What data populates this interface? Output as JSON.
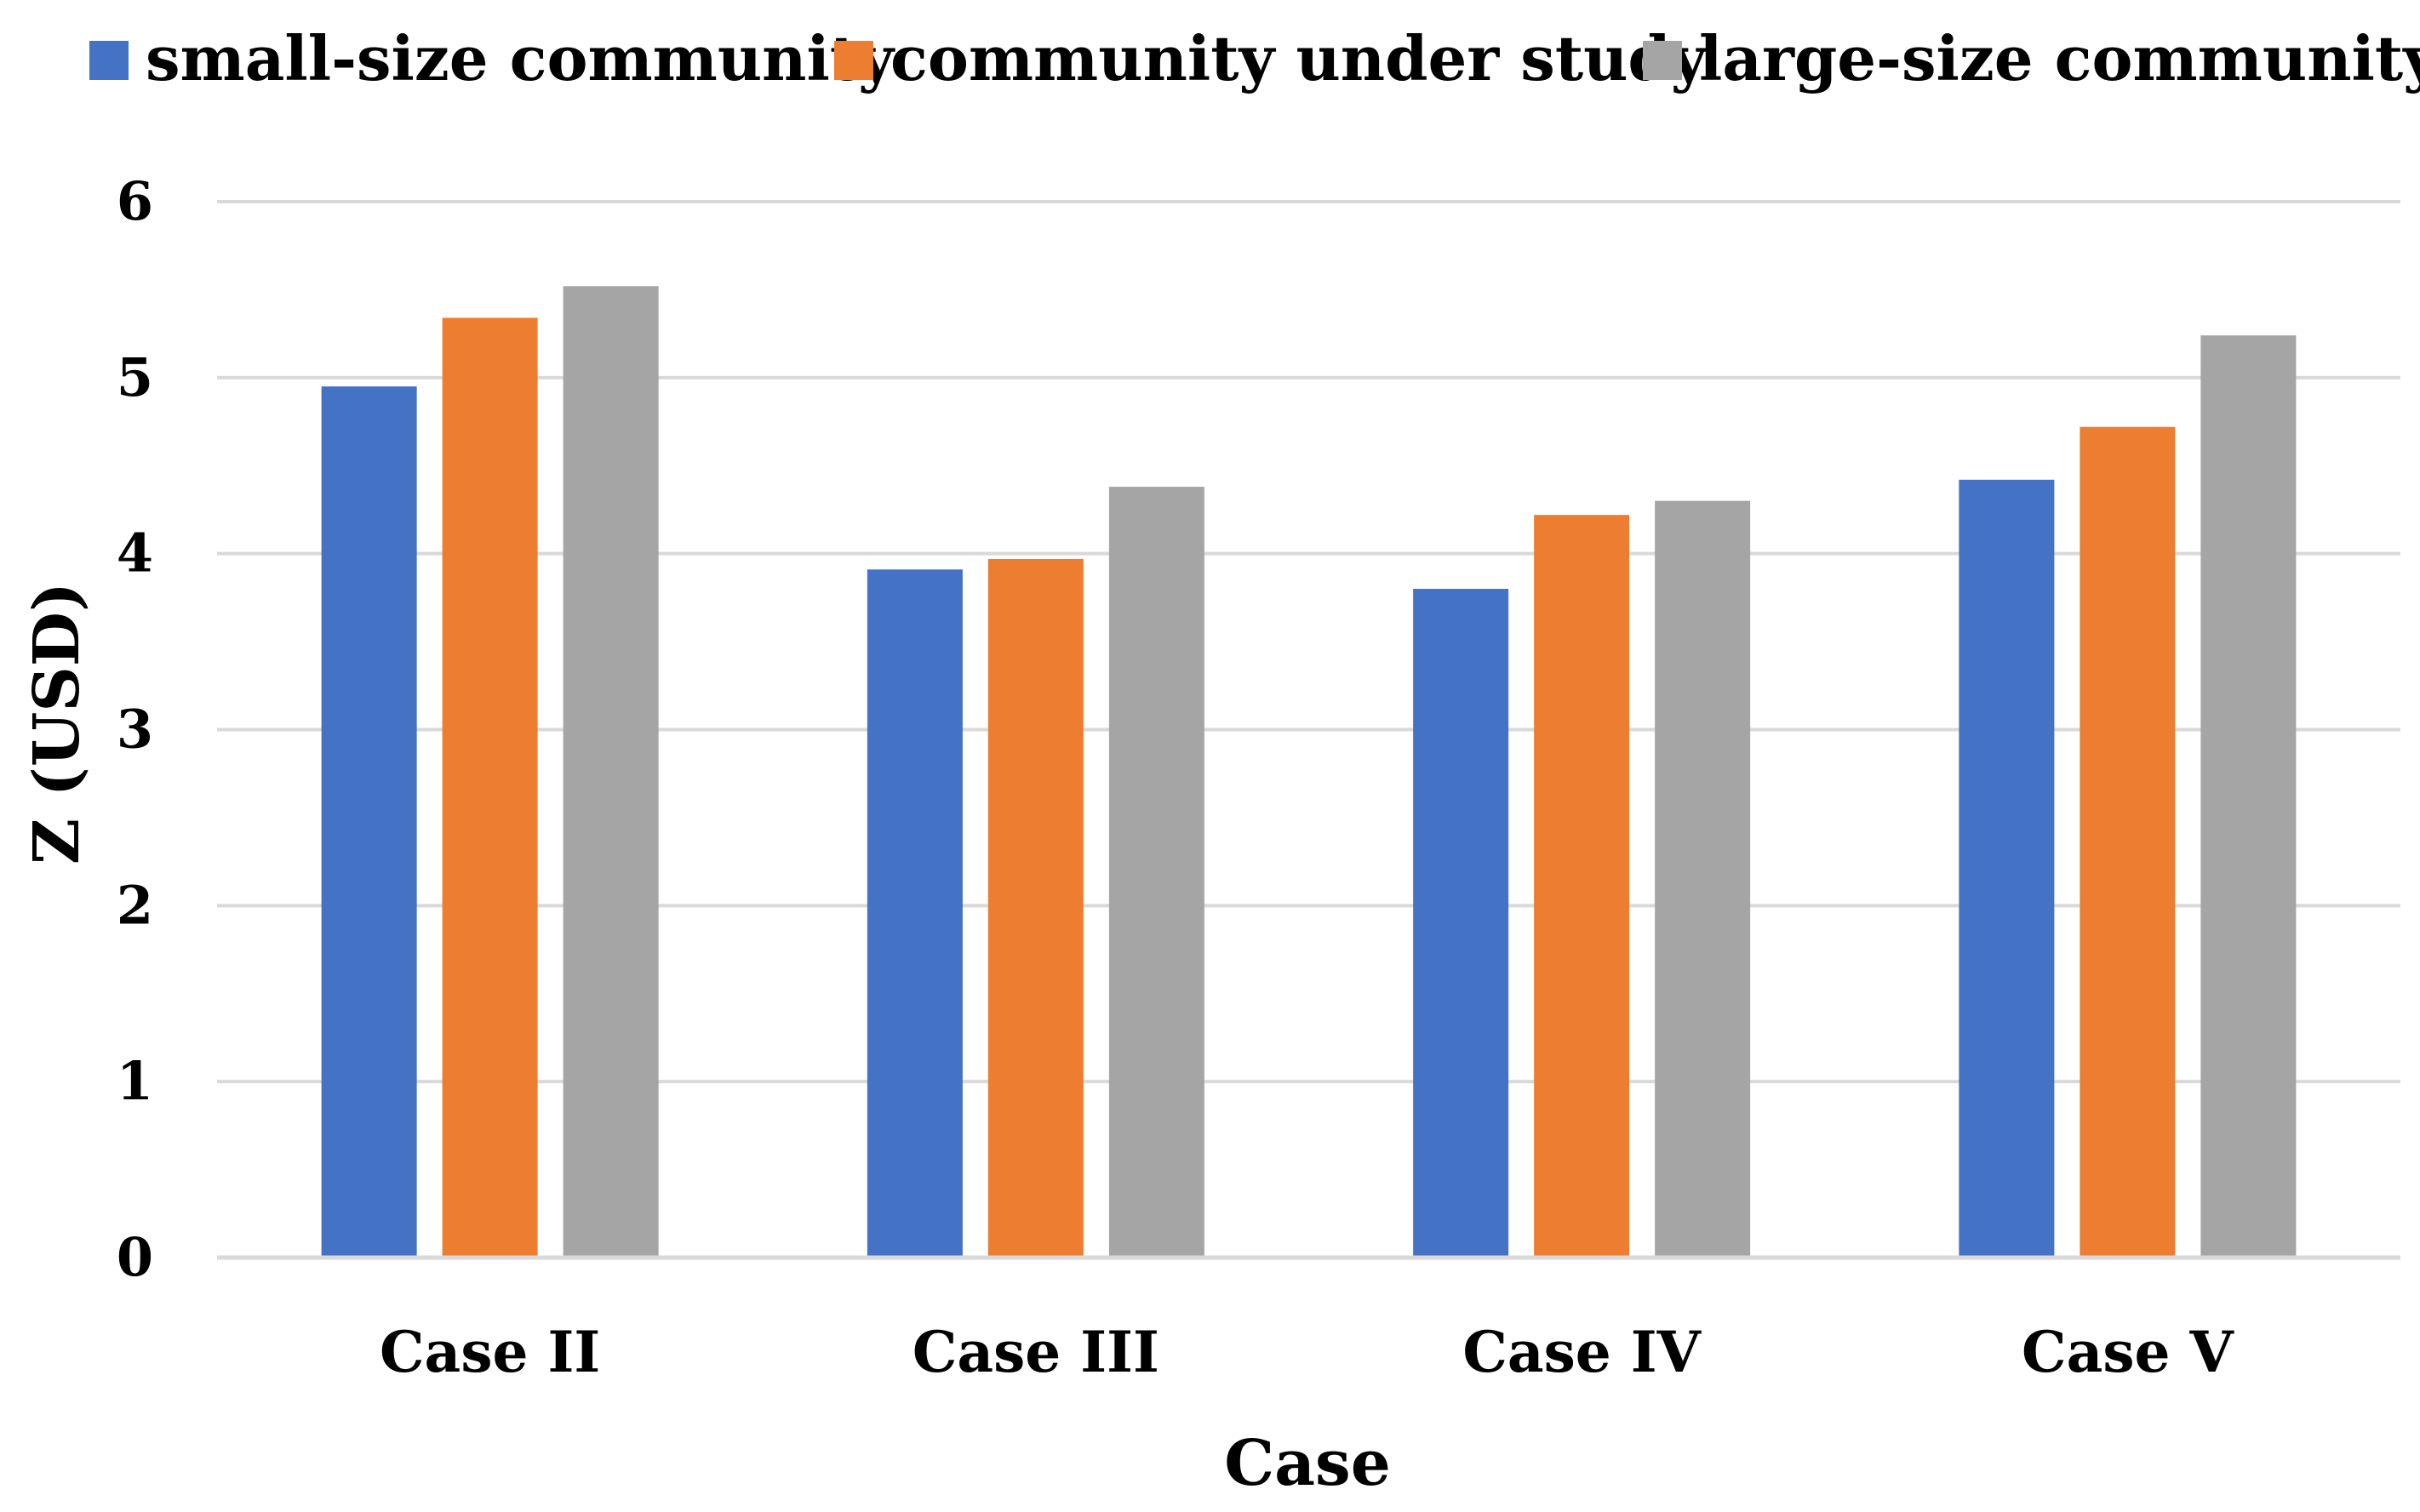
{
  "chart_data": {
    "type": "bar",
    "title": "",
    "xlabel": "Case",
    "ylabel": "Z (USD)",
    "categories": [
      "Case II",
      "Case III",
      "Case IV",
      "Case V"
    ],
    "ylim": [
      0,
      6
    ],
    "yticks": [
      0,
      1,
      2,
      3,
      4,
      5,
      6
    ],
    "grid": true,
    "legend_position": "top",
    "series": [
      {
        "name": "small-size community",
        "color": "#4472C4",
        "values": [
          4.95,
          3.91,
          3.8,
          4.42
        ]
      },
      {
        "name": "community under study",
        "color": "#ED7D31",
        "values": [
          5.34,
          3.97,
          4.22,
          4.72
        ]
      },
      {
        "name": "large-size community",
        "color": "#A5A5A5",
        "values": [
          5.52,
          4.38,
          4.3,
          5.24
        ]
      }
    ]
  }
}
